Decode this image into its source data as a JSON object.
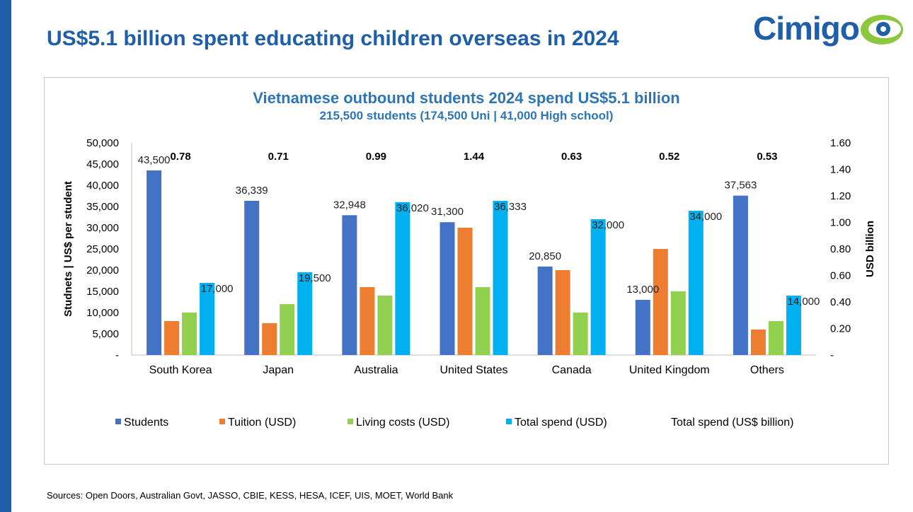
{
  "slide_title": "US$5.1 billion spent educating children overseas in 2024",
  "logo": {
    "text": "Cimigo"
  },
  "sources": "Sources: Open Doors, Australian Govt, JASSO, CBIE, KESS, HESA, ICEF, UIS, MOET, World Bank",
  "colors": {
    "brand_blue": "#1f5faa",
    "title_blue": "#2e75b6",
    "students": "#4472c4",
    "tuition": "#ed7d31",
    "living": "#92d050",
    "total": "#00b0f0",
    "logo_green": "#8dc63f"
  },
  "chart_data": {
    "type": "bar",
    "title": "Vietnamese outbound students 2024 spend US$5.1 billion",
    "subtitle": "215,500 students (174,500 Uni | 41,000 High school)",
    "categories": [
      "South Korea",
      "Japan",
      "Australia",
      "United States",
      "Canada",
      "United Kingdom",
      "Others"
    ],
    "series": [
      {
        "name": "Students",
        "values": [
          43500,
          36339,
          32948,
          31300,
          20850,
          13000,
          37563
        ],
        "labels": [
          "43,500",
          "36,339",
          "32,948",
          "31,300",
          "20,850",
          "13,000",
          "37,563"
        ]
      },
      {
        "name": "Tuition (USD)",
        "values": [
          8000,
          7500,
          16000,
          30000,
          20000,
          25000,
          6000
        ]
      },
      {
        "name": "Living costs (USD)",
        "values": [
          10000,
          12000,
          14000,
          16000,
          10000,
          15000,
          8000
        ]
      },
      {
        "name": "Total spend (USD)",
        "values": [
          17000,
          19500,
          36020,
          36333,
          32000,
          34000,
          14000
        ],
        "labels": [
          "17,000",
          "19,500",
          "36,020",
          "36,333",
          "32,000",
          "34,000",
          "14,000"
        ]
      }
    ],
    "secondary_series": {
      "name": "Total spend (US$ billion)",
      "values": [
        0.78,
        0.71,
        0.99,
        1.44,
        0.63,
        0.52,
        0.53
      ],
      "labels": [
        "0.78",
        "0.71",
        "0.99",
        "1.44",
        "0.63",
        "0.52",
        "0.53"
      ]
    },
    "ylabel": "Studnets | US$ per student",
    "y2label": "USD billion",
    "ylim": [
      0,
      50000
    ],
    "y2lim": [
      0,
      1.6
    ],
    "yticks": [
      "-",
      "5,000",
      "10,000",
      "15,000",
      "20,000",
      "25,000",
      "30,000",
      "35,000",
      "40,000",
      "45,000",
      "50,000"
    ],
    "y2ticks": [
      "-",
      "0.20",
      "0.40",
      "0.60",
      "0.80",
      "1.00",
      "1.20",
      "1.40",
      "1.60"
    ],
    "legend": [
      "Students",
      "Tuition (USD)",
      "Living costs (USD)",
      "Total spend (USD)",
      "Total spend (US$ billion)"
    ],
    "legend_position": "bottom",
    "grid": false
  }
}
